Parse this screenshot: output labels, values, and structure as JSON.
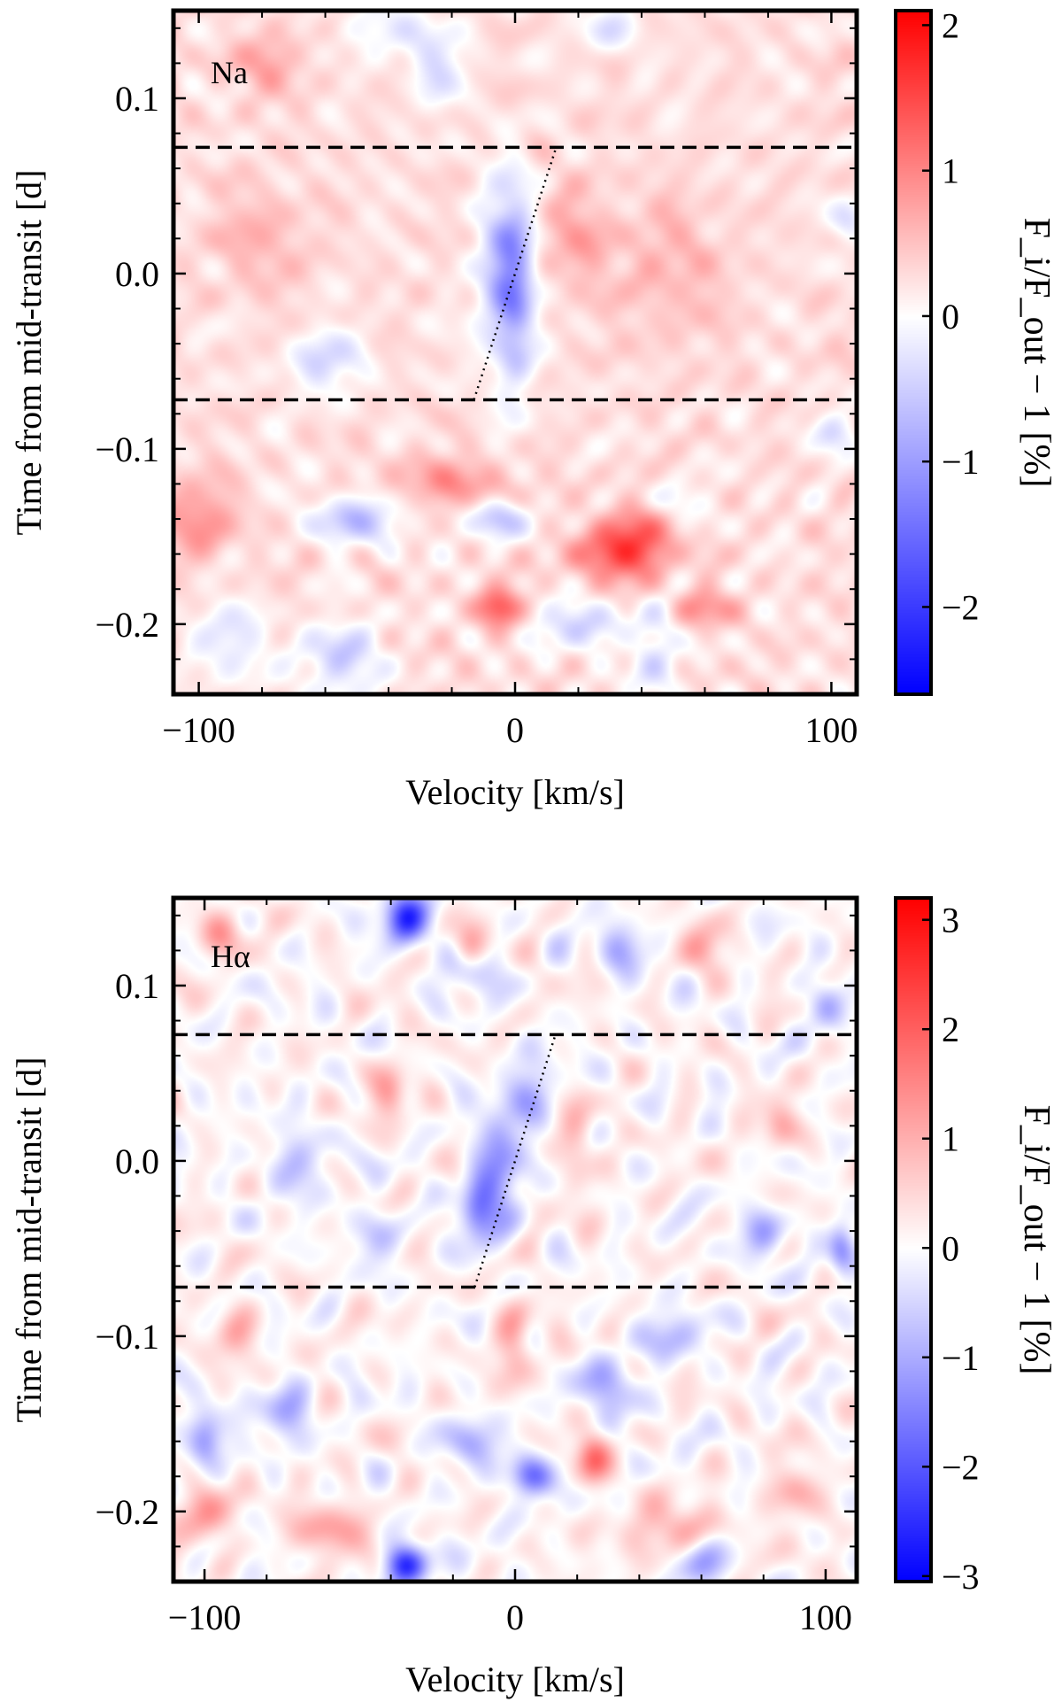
{
  "colors": {
    "negative": "#0000ff",
    "neutral": "#ffffff",
    "positive": "#ff0000",
    "frame": "#000000"
  },
  "chart_data": [
    {
      "type": "heatmap",
      "panel_label": "Na",
      "xlabel": "Velocity [km/s]",
      "ylabel": "Time from mid-transit [d]",
      "xlim": [
        -108,
        108
      ],
      "ylim": [
        -0.24,
        0.15
      ],
      "xticks": [
        -100,
        0,
        100
      ],
      "xtick_labels": [
        "−100",
        "0",
        "100"
      ],
      "yticks": [
        -0.2,
        -0.1,
        0.0,
        0.1
      ],
      "ytick_labels": [
        "−0.2",
        "−0.1",
        "0.0",
        "0.1"
      ],
      "transit_limits": [
        -0.072,
        0.072
      ],
      "planet_track": {
        "t": [
          -0.072,
          0.072
        ],
        "v": [
          -13,
          13
        ]
      },
      "colorbar": {
        "label": "F_i/F_out − 1 [%]",
        "range": [
          -2.6,
          2.1
        ],
        "ticks": [
          2,
          1,
          0,
          -1,
          -2
        ],
        "tick_labels": [
          "2",
          "1",
          "0",
          "−1",
          "−2"
        ]
      },
      "features": [
        {
          "v": -3,
          "t": 0.0,
          "amp": -1.1,
          "sv": 6,
          "st": 0.035
        },
        {
          "v": 0,
          "t": -0.015,
          "amp": -0.6,
          "sv": 4,
          "st": 0.04
        },
        {
          "v": -60,
          "t": -0.05,
          "amp": -0.7,
          "sv": 8,
          "st": 0.012
        },
        {
          "v": -40,
          "t": 0.14,
          "amp": -0.5,
          "sv": 8,
          "st": 0.01
        },
        {
          "v": -25,
          "t": 0.12,
          "amp": -0.6,
          "sv": 6,
          "st": 0.015
        },
        {
          "v": 30,
          "t": 0.14,
          "amp": -0.5,
          "sv": 6,
          "st": 0.01
        },
        {
          "v": -80,
          "t": 0.12,
          "amp": 0.5,
          "sv": 8,
          "st": 0.012
        },
        {
          "v": -50,
          "t": -0.14,
          "amp": -0.9,
          "sv": 10,
          "st": 0.01
        },
        {
          "v": -5,
          "t": -0.14,
          "amp": -1.0,
          "sv": 6,
          "st": 0.008
        },
        {
          "v": 40,
          "t": -0.15,
          "amp": 0.9,
          "sv": 8,
          "st": 0.015
        },
        {
          "v": 30,
          "t": -0.16,
          "amp": 0.9,
          "sv": 10,
          "st": 0.01
        },
        {
          "v": -5,
          "t": -0.19,
          "amp": 1.2,
          "sv": 5,
          "st": 0.008
        },
        {
          "v": -55,
          "t": -0.22,
          "amp": -0.8,
          "sv": 8,
          "st": 0.015
        },
        {
          "v": -90,
          "t": -0.21,
          "amp": -0.6,
          "sv": 8,
          "st": 0.015
        },
        {
          "v": 20,
          "t": -0.2,
          "amp": -0.7,
          "sv": 10,
          "st": 0.01
        },
        {
          "v": 45,
          "t": -0.22,
          "amp": -0.6,
          "sv": 5,
          "st": 0.02
        },
        {
          "v": -100,
          "t": -0.14,
          "amp": 0.7,
          "sv": 8,
          "st": 0.015
        },
        {
          "v": 60,
          "t": -0.19,
          "amp": 0.7,
          "sv": 6,
          "st": 0.008
        },
        {
          "v": 50,
          "t": -0.13,
          "amp": -0.6,
          "sv": 6,
          "st": 0.008
        },
        {
          "v": -20,
          "t": -0.12,
          "amp": 0.6,
          "sv": 15,
          "st": 0.01
        },
        {
          "v": 100,
          "t": -0.09,
          "amp": -0.5,
          "sv": 5,
          "st": 0.008
        },
        {
          "v": 105,
          "t": 0.03,
          "amp": -0.5,
          "sv": 4,
          "st": 0.008
        },
        {
          "v": 20,
          "t": 0.02,
          "amp": 0.5,
          "sv": 8,
          "st": 0.02
        },
        {
          "v": -80,
          "t": 0.02,
          "amp": 0.4,
          "sv": 10,
          "st": 0.02
        },
        {
          "v": 50,
          "t": 0.0,
          "amp": 0.35,
          "sv": 12,
          "st": 0.03
        }
      ]
    },
    {
      "type": "heatmap",
      "panel_label": "Hα",
      "xlabel": "Velocity [km/s]",
      "ylabel": "Time from mid-transit [d]",
      "xlim": [
        -110,
        110
      ],
      "ylim": [
        -0.24,
        0.15
      ],
      "xticks": [
        -100,
        0,
        100
      ],
      "xtick_labels": [
        "−100",
        "0",
        "100"
      ],
      "yticks": [
        -0.2,
        -0.1,
        0.0,
        0.1
      ],
      "ytick_labels": [
        "−0.2",
        "−0.1",
        "0.0",
        "0.1"
      ],
      "transit_limits": [
        -0.072,
        0.072
      ],
      "planet_track": {
        "t": [
          -0.072,
          0.072
        ],
        "v": [
          -13,
          13
        ]
      },
      "colorbar": {
        "label": "F_i/F_out − 1 [%]",
        "range": [
          -3.05,
          3.2
        ],
        "ticks": [
          3,
          2,
          1,
          0,
          -1,
          -2,
          -3
        ],
        "tick_labels": [
          "3",
          "2",
          "1",
          "0",
          "−1",
          "−2",
          "−3"
        ]
      },
      "features": [
        {
          "v": -35,
          "t": 0.14,
          "amp": -2.5,
          "sv": 5,
          "st": 0.01
        },
        {
          "v": -5,
          "t": 0.0,
          "amp": -1.6,
          "sv": 5,
          "st": 0.02
        },
        {
          "v": -12,
          "t": -0.03,
          "amp": -1.5,
          "sv": 4,
          "st": 0.015
        },
        {
          "v": 5,
          "t": 0.04,
          "amp": -1.0,
          "sv": 5,
          "st": 0.015
        },
        {
          "v": 5,
          "t": -0.18,
          "amp": -1.8,
          "sv": 5,
          "st": 0.008
        },
        {
          "v": -35,
          "t": -0.23,
          "amp": -2.5,
          "sv": 5,
          "st": 0.008
        },
        {
          "v": -100,
          "t": -0.16,
          "amp": -1.5,
          "sv": 4,
          "st": 0.012
        },
        {
          "v": -75,
          "t": -0.14,
          "amp": -1.2,
          "sv": 6,
          "st": 0.01
        },
        {
          "v": 25,
          "t": -0.17,
          "amp": 1.5,
          "sv": 4,
          "st": 0.01
        },
        {
          "v": 0,
          "t": -0.1,
          "amp": 1.0,
          "sv": 4,
          "st": 0.015
        },
        {
          "v": -15,
          "t": 0.11,
          "amp": -1.0,
          "sv": 6,
          "st": 0.01
        },
        {
          "v": 35,
          "t": 0.12,
          "amp": -1.0,
          "sv": 6,
          "st": 0.01
        },
        {
          "v": 100,
          "t": 0.09,
          "amp": -1.0,
          "sv": 4,
          "st": 0.01
        },
        {
          "v": 105,
          "t": -0.05,
          "amp": -1.5,
          "sv": 3,
          "st": 0.01
        },
        {
          "v": 80,
          "t": -0.04,
          "amp": -1.2,
          "sv": 5,
          "st": 0.01
        },
        {
          "v": -70,
          "t": 0.0,
          "amp": -1.0,
          "sv": 6,
          "st": 0.012
        },
        {
          "v": -45,
          "t": -0.04,
          "amp": -0.9,
          "sv": 5,
          "st": 0.01
        },
        {
          "v": -15,
          "t": 0.12,
          "amp": 1.2,
          "sv": 4,
          "st": 0.01
        },
        {
          "v": -95,
          "t": 0.13,
          "amp": 1.0,
          "sv": 5,
          "st": 0.01
        },
        {
          "v": 60,
          "t": 0.12,
          "amp": 1.0,
          "sv": 5,
          "st": 0.01
        },
        {
          "v": -40,
          "t": 0.04,
          "amp": 1.0,
          "sv": 4,
          "st": 0.012
        },
        {
          "v": -60,
          "t": -0.21,
          "amp": 1.2,
          "sv": 8,
          "st": 0.01
        },
        {
          "v": 50,
          "t": -0.21,
          "amp": 1.0,
          "sv": 10,
          "st": 0.01
        },
        {
          "v": 90,
          "t": -0.19,
          "amp": 1.1,
          "sv": 5,
          "st": 0.01
        },
        {
          "v": -100,
          "t": -0.2,
          "amp": 1.3,
          "sv": 5,
          "st": 0.012
        },
        {
          "v": 30,
          "t": -0.13,
          "amp": -1.1,
          "sv": 6,
          "st": 0.012
        },
        {
          "v": 50,
          "t": -0.1,
          "amp": -1.0,
          "sv": 6,
          "st": 0.01
        },
        {
          "v": -15,
          "t": -0.16,
          "amp": -1.0,
          "sv": 6,
          "st": 0.01
        },
        {
          "v": 60,
          "t": -0.23,
          "amp": -1.2,
          "sv": 5,
          "st": 0.01
        },
        {
          "v": -90,
          "t": -0.1,
          "amp": 1.0,
          "sv": 5,
          "st": 0.01
        },
        {
          "v": 85,
          "t": 0.02,
          "amp": 1.0,
          "sv": 4,
          "st": 0.01
        },
        {
          "v": 20,
          "t": 0.01,
          "amp": 0.9,
          "sv": 4,
          "st": 0.015
        }
      ]
    }
  ]
}
